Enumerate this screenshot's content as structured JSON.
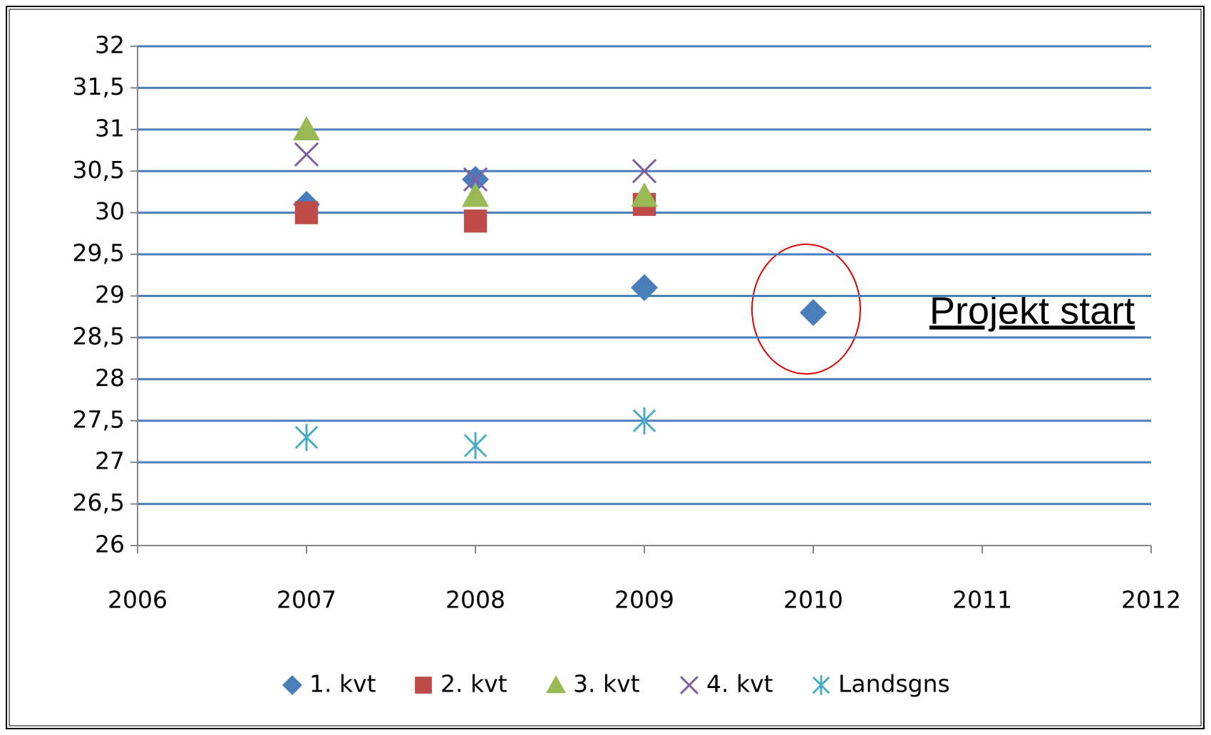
{
  "chart_data": {
    "type": "scatter",
    "x": [
      2007,
      2008,
      2009,
      2010
    ],
    "series": [
      {
        "name": "1. kvt",
        "color": "#4a7ebb",
        "marker": "diamond",
        "values": [
          30.1,
          30.4,
          29.1,
          28.8
        ]
      },
      {
        "name": "2. kvt",
        "color": "#be4b48",
        "marker": "square",
        "values": [
          30.0,
          29.9,
          30.1,
          null
        ]
      },
      {
        "name": "3. kvt",
        "color": "#98b954",
        "marker": "triangle",
        "values": [
          31.0,
          30.2,
          30.2,
          null
        ]
      },
      {
        "name": "4. kvt",
        "color": "#7d60a0",
        "marker": "x",
        "values": [
          30.7,
          30.4,
          30.5,
          null
        ]
      },
      {
        "name": "Landsgns",
        "color": "#4bacc6",
        "marker": "star",
        "values": [
          27.3,
          27.2,
          27.5,
          null
        ]
      }
    ],
    "xlim": [
      2006,
      2012
    ],
    "xticks": [
      2006,
      2007,
      2008,
      2009,
      2010,
      2011,
      2012
    ],
    "ylim": [
      26,
      32
    ],
    "yticks": [
      26,
      {
        "value": 26.5,
        "label": "26,5"
      },
      27,
      {
        "value": 27.5,
        "label": "27,5"
      },
      28,
      {
        "value": 28.5,
        "label": "28,5"
      },
      29,
      {
        "value": 29.5,
        "label": "29,5"
      },
      30,
      {
        "value": 30.5,
        "label": "30,5"
      },
      31,
      {
        "value": 31.5,
        "label": "31,5"
      },
      32
    ],
    "grid": true,
    "grid_color": "#4a7ebb",
    "legend": "bottom",
    "annotation": "Projekt start"
  }
}
